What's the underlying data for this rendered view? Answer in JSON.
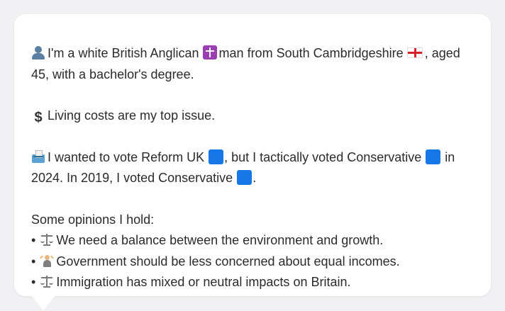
{
  "profile": {
    "line1_prefix": "I'm a white British Anglican",
    "line1_mid": "man from South Cambridgeshire",
    "line1_suffix": ", aged 45, with a bachelor's degree.",
    "issue": "Living costs are my top issue.",
    "vote_prefix": "I wanted to vote Reform UK",
    "vote_mid": ", but I tactically voted Conservative",
    "vote_suffix": "in 2024. In 2019, I voted Conservative",
    "vote_end": "."
  },
  "opinions": {
    "heading": "Some opinions I hold:",
    "bullet": "•",
    "items": [
      {
        "icon": "scales-icon",
        "text": "We need a balance between the environment and growth."
      },
      {
        "icon": "person-juggling-icon",
        "text": "Government should be less concerned about equal incomes."
      },
      {
        "icon": "scales-icon",
        "text": "Immigration has mixed or neutral impacts on Britain."
      }
    ]
  },
  "colors": {
    "party_square": "#1877e6",
    "card_background": "#ffffff",
    "page_background": "#f1f1f3",
    "text": "#2b2b2b"
  }
}
